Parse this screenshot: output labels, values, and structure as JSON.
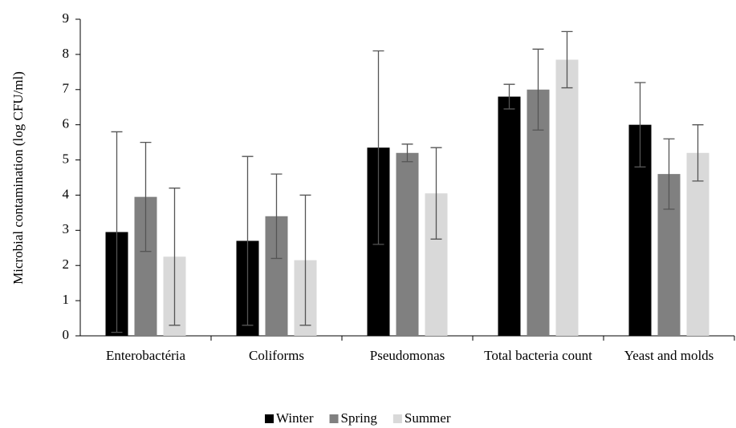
{
  "chart_data": {
    "type": "bar",
    "y_label": "Microbial contamination  (log CFU/ml)",
    "categories": [
      "Enterobactéria",
      "Coliforms",
      "Pseudomonas",
      "Total bacteria count",
      "Yeast and molds"
    ],
    "series": [
      {
        "name": "Winter",
        "color": "#000000",
        "values": [
          2.95,
          2.7,
          5.35,
          6.8,
          6.0
        ],
        "errors": [
          2.85,
          2.4,
          2.75,
          0.35,
          1.2
        ]
      },
      {
        "name": "Spring",
        "color": "#808080",
        "values": [
          3.95,
          3.4,
          5.2,
          7.0,
          4.6
        ],
        "errors": [
          1.55,
          1.2,
          0.25,
          1.15,
          1.0
        ]
      },
      {
        "name": "Summer",
        "color": "#d9d9d9",
        "values": [
          2.25,
          2.15,
          4.05,
          7.85,
          5.2
        ],
        "errors": [
          1.95,
          1.85,
          1.3,
          0.8,
          0.8
        ]
      }
    ],
    "ylim": [
      0,
      9
    ],
    "yticks": [
      0,
      1,
      2,
      3,
      4,
      5,
      6,
      7,
      8,
      9
    ],
    "legend": "bottom"
  }
}
